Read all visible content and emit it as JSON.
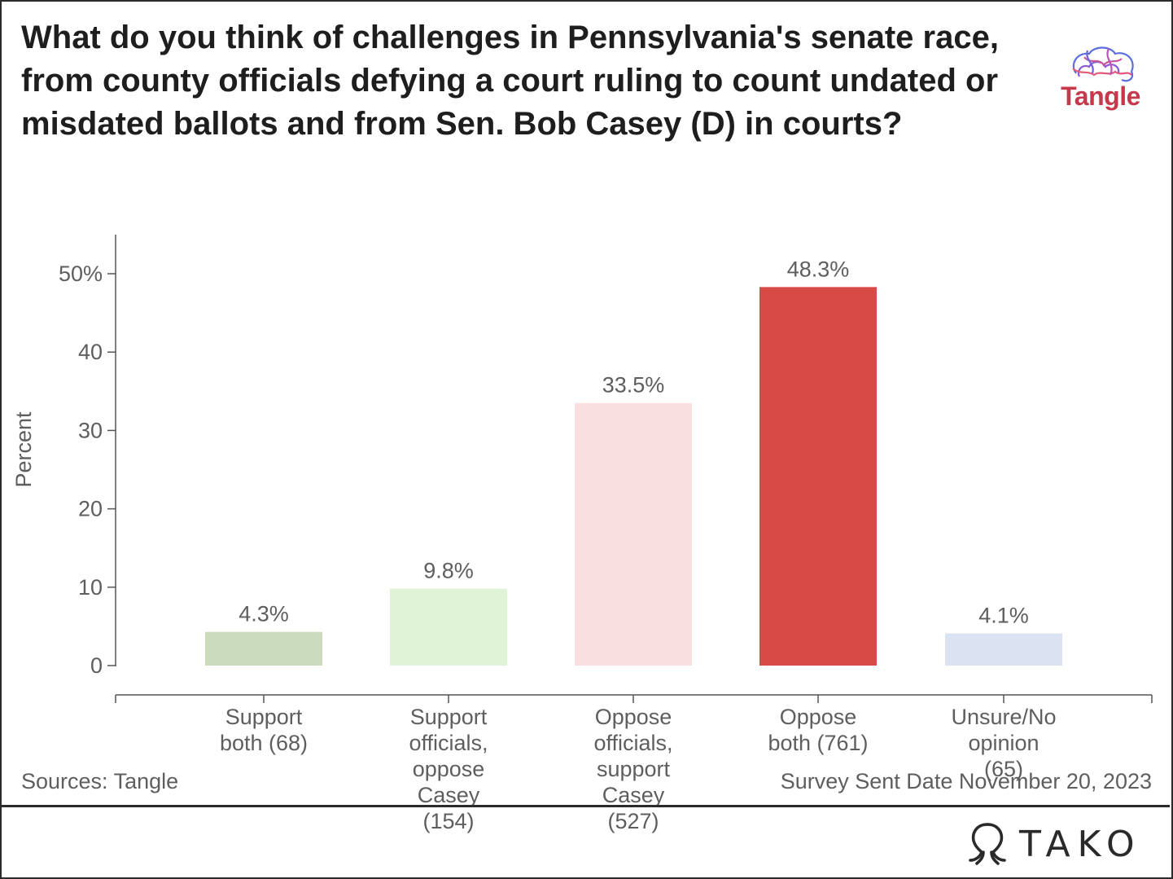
{
  "header": {
    "title": "What do you think of challenges in Pennsylvania's senate race, from county officials defying a court ruling to count undated or misdated ballots and from Sen. Bob Casey (D) in courts?",
    "brand_name": "Tangle",
    "brand_icon": "brain-logo-icon"
  },
  "chart_data": {
    "type": "bar",
    "categories": [
      "Support both (68)",
      "Support officials, oppose Casey (154)",
      "Oppose officials, support Casey (527)",
      "Oppose both (761)",
      "Unsure/No opinion (65)"
    ],
    "category_lines": [
      [
        "Support",
        "both (68)"
      ],
      [
        "Support",
        "officials,",
        "oppose",
        "Casey",
        "(154)"
      ],
      [
        "Oppose",
        "officials,",
        "support",
        "Casey",
        "(527)"
      ],
      [
        "Oppose",
        "both (761)"
      ],
      [
        "Unsure/No",
        "opinion",
        "(65)"
      ]
    ],
    "values": [
      4.3,
      9.8,
      33.5,
      48.3,
      4.1
    ],
    "value_labels": [
      "4.3%",
      "9.8%",
      "33.5%",
      "48.3%",
      "4.1%"
    ],
    "colors": [
      "#c9dbbb",
      "#e1f3d6",
      "#f9dfe0",
      "#d74a45",
      "#dbe2f1"
    ],
    "ylabel": "Percent",
    "yticks": [
      0,
      10,
      20,
      30,
      40,
      50
    ],
    "ytick_labels": [
      "0",
      "10",
      "20",
      "30",
      "40",
      "50%"
    ],
    "ylim": [
      0,
      55
    ],
    "grid": false,
    "legend": "none"
  },
  "footer": {
    "source": "Sources: Tangle",
    "survey_date": "Survey Sent Date November 20, 2023",
    "brand": "TAKO",
    "brand_icon": "tako-octopus-icon"
  }
}
